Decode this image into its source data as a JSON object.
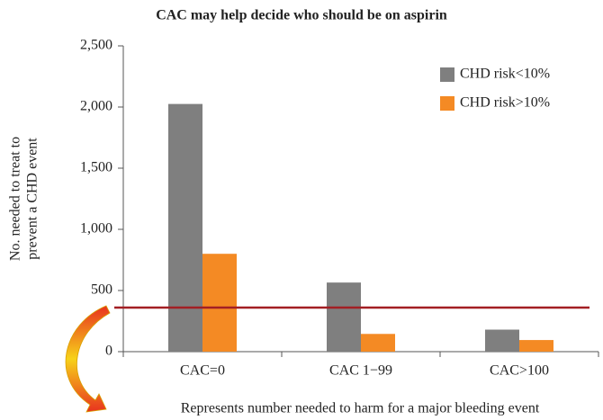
{
  "chart_data": {
    "type": "bar",
    "title": "CAC may help decide who should be on aspirin",
    "y_label": [
      "No. needed to treat to",
      "prevent a CHD event"
    ],
    "categories": [
      "CAC=0",
      "CAC 1−99",
      "CAC>100"
    ],
    "series": [
      {
        "name": "CHD risk<10%",
        "color": "#7f7f7f",
        "values": [
          2025,
          565,
          180
        ]
      },
      {
        "name": "CHD risk>10%",
        "color": "#f48a24",
        "values": [
          800,
          145,
          95
        ]
      }
    ],
    "ylim": [
      0,
      2500
    ],
    "yticks": [
      0,
      500,
      {
        "value": 1000,
        "label": "1,000"
      },
      {
        "value": 1500,
        "label": "1,500"
      },
      {
        "value": 2000,
        "label": "2,000"
      },
      {
        "value": 2500,
        "label": "2,500"
      }
    ],
    "reference_line": {
      "value": 360,
      "color": "#a31f24",
      "label": "Represents number needed to harm for a major bleeding event"
    },
    "legend": "top-right"
  }
}
